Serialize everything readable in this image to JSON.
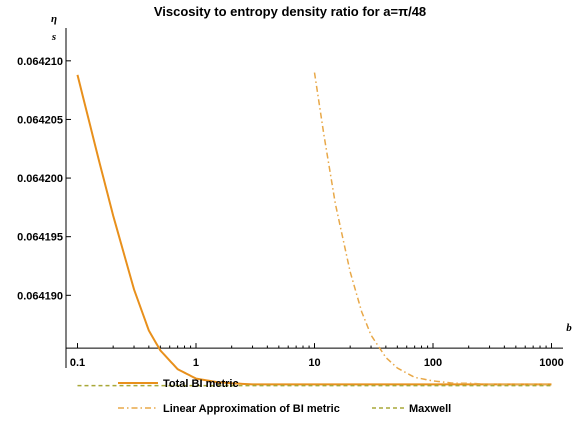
{
  "chart_data": {
    "type": "line",
    "title": "Viscosity to entropy density ratio for a=π/48",
    "xlabel": "b",
    "ylabel_num": "η",
    "ylabel_den": "s",
    "xscale": "log",
    "xlim": [
      0.08,
      1250
    ],
    "ylim": [
      0.0641838,
      0.0642128
    ],
    "x_ticks": [
      0.1,
      1,
      10,
      100,
      1000
    ],
    "x_tick_labels": [
      "0.1",
      "1",
      "10",
      "100",
      "1000"
    ],
    "y_ticks": [
      0.06419,
      0.064195,
      0.0642,
      0.064205,
      0.06421
    ],
    "y_tick_labels": [
      "0.064190",
      "0.064195",
      "0.064200",
      "0.064205",
      "0.064210"
    ],
    "axis_crossing_y": 0.0641855,
    "series": [
      {
        "name": "Total BI metric",
        "color": "#e8901c",
        "dash": "solid",
        "x": [
          0.1,
          0.15,
          0.2,
          0.3,
          0.4,
          0.5,
          0.7,
          1,
          1.5,
          2,
          3,
          5,
          10,
          100,
          1000
        ],
        "y": [
          0.0642088,
          0.0642017,
          0.0641968,
          0.0641905,
          0.064187,
          0.0641853,
          0.0641837,
          0.0641829,
          0.0641826,
          0.0641825,
          0.0641824,
          0.0641824,
          0.0641824,
          0.0641824,
          0.0641824
        ]
      },
      {
        "name": "Linear Approximation of BI metric",
        "color": "#e8a848",
        "dash": "dashdot",
        "x": [
          10,
          12,
          15,
          20,
          25,
          30,
          40,
          50,
          70,
          100,
          150,
          200,
          300,
          500,
          1000
        ],
        "y": [
          0.064209,
          0.0642037,
          0.0641978,
          0.064192,
          0.0641886,
          0.0641866,
          0.0641847,
          0.0641838,
          0.064183,
          0.0641827,
          0.0641825,
          0.0641825,
          0.0641824,
          0.0641824,
          0.0641824
        ]
      },
      {
        "name": "Maxwell",
        "color": "#a8a838",
        "dash": "dashed",
        "x": [
          0.1,
          1000
        ],
        "y": [
          0.0641823,
          0.0641823
        ]
      }
    ],
    "legend": {
      "placement": "bottom",
      "entries": [
        "Total BI metric",
        "Linear Approximation of BI metric",
        "Maxwell"
      ]
    }
  }
}
